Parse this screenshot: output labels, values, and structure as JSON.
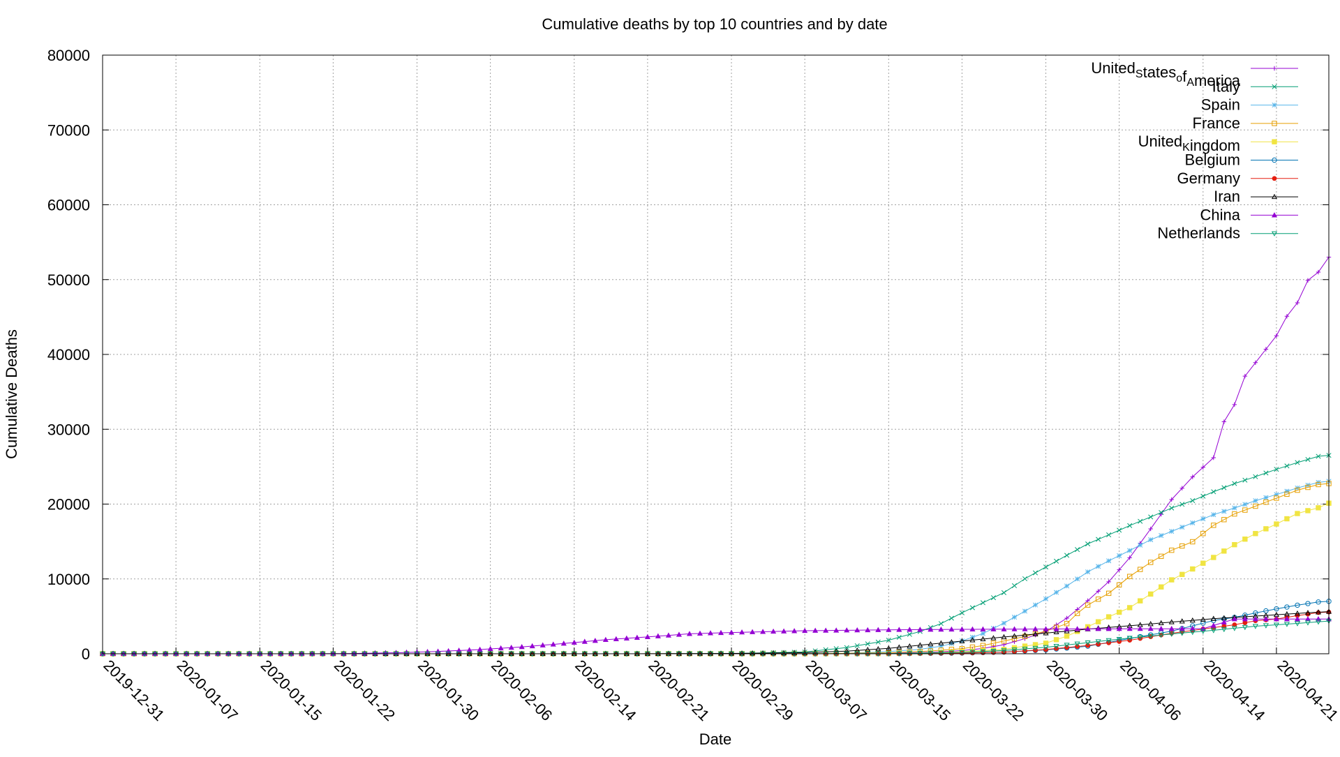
{
  "chart_data": {
    "type": "line",
    "title": "Cumulative deaths by top 10 countries and by date",
    "xlabel": "Date",
    "ylabel": "Cumulative Deaths",
    "x_start": "2019-12-31",
    "x_end": "2020-04-26",
    "x_ticks": [
      "2019-12-31",
      "2020-01-07",
      "2020-01-15",
      "2020-01-22",
      "2020-01-30",
      "2020-02-06",
      "2020-02-14",
      "2020-02-21",
      "2020-02-29",
      "2020-03-07",
      "2020-03-15",
      "2020-03-22",
      "2020-03-30",
      "2020-04-06",
      "2020-04-14",
      "2020-04-21"
    ],
    "ylim": [
      0,
      80000
    ],
    "y_ticks": [
      "0",
      "10000",
      "20000",
      "30000",
      "40000",
      "50000",
      "60000",
      "70000",
      "80000"
    ],
    "grid": true,
    "legend_position": "top-right",
    "series": [
      {
        "name": "United_States_of_America",
        "legend_parts": [
          [
            "United",
            ""
          ],
          [
            "S",
            "sub"
          ],
          [
            "tates",
            ""
          ],
          [
            "o",
            "sub"
          ],
          [
            "f",
            ""
          ],
          [
            "A",
            "sub"
          ],
          [
            "merica",
            ""
          ]
        ],
        "color": "#9400d3",
        "marker": "plus",
        "points": [
          [
            "2019-12-31",
            0
          ],
          [
            "2020-02-29",
            1
          ],
          [
            "2020-03-07",
            17
          ],
          [
            "2020-03-15",
            68
          ],
          [
            "2020-03-19",
            205
          ],
          [
            "2020-03-22",
            417
          ],
          [
            "2020-03-24",
            706
          ],
          [
            "2020-03-26",
            1209
          ],
          [
            "2020-03-28",
            2026
          ],
          [
            "2020-03-30",
            2978
          ],
          [
            "2020-04-01",
            4757
          ],
          [
            "2020-04-03",
            7087
          ],
          [
            "2020-04-05",
            9620
          ],
          [
            "2020-04-07",
            12837
          ],
          [
            "2020-04-09",
            16686
          ],
          [
            "2020-04-11",
            20608
          ],
          [
            "2020-04-13",
            23637
          ],
          [
            "2020-04-15",
            26200
          ],
          [
            "2020-04-16",
            31000
          ],
          [
            "2020-04-17",
            33300
          ],
          [
            "2020-04-18",
            37100
          ],
          [
            "2020-04-19",
            38900
          ],
          [
            "2020-04-20",
            40700
          ],
          [
            "2020-04-21",
            42500
          ],
          [
            "2020-04-22",
            45100
          ],
          [
            "2020-04-23",
            46900
          ],
          [
            "2020-04-24",
            49900
          ],
          [
            "2020-04-25",
            51000
          ],
          [
            "2020-04-26",
            53000
          ],
          [
            "2020-04-27",
            54900
          ]
        ]
      },
      {
        "name": "Italy",
        "color": "#009e73",
        "marker": "x",
        "points": [
          [
            "2019-12-31",
            0
          ],
          [
            "2020-02-21",
            1
          ],
          [
            "2020-02-29",
            29
          ],
          [
            "2020-03-07",
            233
          ],
          [
            "2020-03-11",
            827
          ],
          [
            "2020-03-15",
            1809
          ],
          [
            "2020-03-18",
            2978
          ],
          [
            "2020-03-20",
            4032
          ],
          [
            "2020-03-22",
            5476
          ],
          [
            "2020-03-24",
            6820
          ],
          [
            "2020-03-26",
            8165
          ],
          [
            "2020-03-28",
            10023
          ],
          [
            "2020-03-30",
            11591
          ],
          [
            "2020-04-01",
            13155
          ],
          [
            "2020-04-03",
            14681
          ],
          [
            "2020-04-05",
            15887
          ],
          [
            "2020-04-07",
            17127
          ],
          [
            "2020-04-09",
            18279
          ],
          [
            "2020-04-11",
            19468
          ],
          [
            "2020-04-13",
            20465
          ],
          [
            "2020-04-15",
            21645
          ],
          [
            "2020-04-17",
            22745
          ],
          [
            "2020-04-19",
            23660
          ],
          [
            "2020-04-21",
            24648
          ],
          [
            "2020-04-23",
            25549
          ],
          [
            "2020-04-25",
            26384
          ],
          [
            "2020-04-27",
            26644
          ]
        ]
      },
      {
        "name": "Spain",
        "color": "#56b4e9",
        "marker": "star",
        "points": [
          [
            "2019-12-31",
            0
          ],
          [
            "2020-03-03",
            1
          ],
          [
            "2020-03-07",
            10
          ],
          [
            "2020-03-11",
            48
          ],
          [
            "2020-03-15",
            288
          ],
          [
            "2020-03-18",
            598
          ],
          [
            "2020-03-20",
            1002
          ],
          [
            "2020-03-22",
            1720
          ],
          [
            "2020-03-24",
            2696
          ],
          [
            "2020-03-26",
            4089
          ],
          [
            "2020-03-28",
            5690
          ],
          [
            "2020-03-30",
            7340
          ],
          [
            "2020-04-01",
            9053
          ],
          [
            "2020-04-03",
            10935
          ],
          [
            "2020-04-05",
            12418
          ],
          [
            "2020-04-07",
            13798
          ],
          [
            "2020-04-09",
            15238
          ],
          [
            "2020-04-11",
            16353
          ],
          [
            "2020-04-13",
            17489
          ],
          [
            "2020-04-15",
            18579
          ],
          [
            "2020-04-17",
            19478
          ],
          [
            "2020-04-19",
            20453
          ],
          [
            "2020-04-21",
            21282
          ],
          [
            "2020-04-23",
            22157
          ],
          [
            "2020-04-25",
            22902
          ],
          [
            "2020-04-27",
            23190
          ]
        ]
      },
      {
        "name": "France",
        "color": "#e69f00",
        "marker": "square",
        "points": [
          [
            "2019-12-31",
            0
          ],
          [
            "2020-02-15",
            1
          ],
          [
            "2020-03-07",
            16
          ],
          [
            "2020-03-15",
            127
          ],
          [
            "2020-03-19",
            372
          ],
          [
            "2020-03-22",
            674
          ],
          [
            "2020-03-24",
            1100
          ],
          [
            "2020-03-26",
            1696
          ],
          [
            "2020-03-28",
            2314
          ],
          [
            "2020-03-30",
            3024
          ],
          [
            "2020-04-01",
            4032
          ],
          [
            "2020-04-02",
            5387
          ],
          [
            "2020-04-03",
            6507
          ],
          [
            "2020-04-05",
            8078
          ],
          [
            "2020-04-07",
            10328
          ],
          [
            "2020-04-09",
            12210
          ],
          [
            "2020-04-11",
            13832
          ],
          [
            "2020-04-13",
            14967
          ],
          [
            "2020-04-15",
            17167
          ],
          [
            "2020-04-17",
            18681
          ],
          [
            "2020-04-19",
            19718
          ],
          [
            "2020-04-21",
            20796
          ],
          [
            "2020-04-23",
            21856
          ],
          [
            "2020-04-25",
            22614
          ],
          [
            "2020-04-27",
            22890
          ]
        ]
      },
      {
        "name": "United_Kingdom",
        "legend_parts": [
          [
            "United",
            ""
          ],
          [
            "K",
            "sub"
          ],
          [
            "ingdom",
            ""
          ]
        ],
        "color": "#f0e442",
        "marker": "fsquare",
        "points": [
          [
            "2019-12-31",
            0
          ],
          [
            "2020-03-06",
            1
          ],
          [
            "2020-03-15",
            21
          ],
          [
            "2020-03-19",
            137
          ],
          [
            "2020-03-22",
            281
          ],
          [
            "2020-03-24",
            422
          ],
          [
            "2020-03-26",
            578
          ],
          [
            "2020-03-28",
            1019
          ],
          [
            "2020-03-30",
            1408
          ],
          [
            "2020-04-01",
            2352
          ],
          [
            "2020-04-03",
            3605
          ],
          [
            "2020-04-05",
            4934
          ],
          [
            "2020-04-07",
            6159
          ],
          [
            "2020-04-09",
            7978
          ],
          [
            "2020-04-11",
            9875
          ],
          [
            "2020-04-13",
            11329
          ],
          [
            "2020-04-15",
            12868
          ],
          [
            "2020-04-17",
            14576
          ],
          [
            "2020-04-19",
            16060
          ],
          [
            "2020-04-21",
            17337
          ],
          [
            "2020-04-23",
            18738
          ],
          [
            "2020-04-25",
            19506
          ],
          [
            "2020-04-27",
            20732
          ]
        ]
      },
      {
        "name": "Belgium",
        "color": "#0072b2",
        "marker": "circle",
        "points": [
          [
            "2019-12-31",
            0
          ],
          [
            "2020-03-11",
            3
          ],
          [
            "2020-03-15",
            10
          ],
          [
            "2020-03-22",
            88
          ],
          [
            "2020-03-26",
            220
          ],
          [
            "2020-03-30",
            513
          ],
          [
            "2020-04-03",
            1011
          ],
          [
            "2020-04-07",
            2035
          ],
          [
            "2020-04-11",
            3019
          ],
          [
            "2020-04-15",
            4440
          ],
          [
            "2020-04-17",
            4857
          ],
          [
            "2020-04-19",
            5453
          ],
          [
            "2020-04-21",
            5998
          ],
          [
            "2020-04-23",
            6490
          ],
          [
            "2020-04-25",
            6917
          ],
          [
            "2020-04-27",
            7094
          ]
        ]
      },
      {
        "name": "Germany",
        "color": "#e51e10",
        "marker": "dot",
        "points": [
          [
            "2019-12-31",
            0
          ],
          [
            "2020-03-09",
            2
          ],
          [
            "2020-03-15",
            12
          ],
          [
            "2020-03-22",
            94
          ],
          [
            "2020-03-26",
            206
          ],
          [
            "2020-03-30",
            560
          ],
          [
            "2020-04-03",
            1107
          ],
          [
            "2020-04-07",
            1810
          ],
          [
            "2020-04-11",
            2736
          ],
          [
            "2020-04-15",
            3495
          ],
          [
            "2020-04-17",
            3868
          ],
          [
            "2020-04-19",
            4404
          ],
          [
            "2020-04-21",
            4642
          ],
          [
            "2020-04-23",
            5094
          ],
          [
            "2020-04-25",
            5500
          ],
          [
            "2020-04-27",
            5640
          ]
        ]
      },
      {
        "name": "Iran",
        "color": "#000000",
        "marker": "triangle",
        "points": [
          [
            "2019-12-31",
            0
          ],
          [
            "2020-02-20",
            2
          ],
          [
            "2020-02-29",
            43
          ],
          [
            "2020-03-07",
            145
          ],
          [
            "2020-03-11",
            354
          ],
          [
            "2020-03-15",
            724
          ],
          [
            "2020-03-19",
            1284
          ],
          [
            "2020-03-22",
            1685
          ],
          [
            "2020-03-26",
            2234
          ],
          [
            "2020-03-30",
            2757
          ],
          [
            "2020-04-03",
            3294
          ],
          [
            "2020-04-07",
            3739
          ],
          [
            "2020-04-11",
            4232
          ],
          [
            "2020-04-15",
            4683
          ],
          [
            "2020-04-19",
            5031
          ],
          [
            "2020-04-23",
            5391
          ],
          [
            "2020-04-27",
            5710
          ]
        ]
      },
      {
        "name": "China",
        "color": "#9400d3",
        "marker": "ftriangle",
        "points": [
          [
            "2019-12-31",
            0
          ],
          [
            "2020-01-11",
            1
          ],
          [
            "2020-01-20",
            3
          ],
          [
            "2020-01-24",
            41
          ],
          [
            "2020-01-28",
            132
          ],
          [
            "2020-02-01",
            304
          ],
          [
            "2020-02-05",
            563
          ],
          [
            "2020-02-09",
            910
          ],
          [
            "2020-02-13",
            1367
          ],
          [
            "2020-02-17",
            1870
          ],
          [
            "2020-02-21",
            2248
          ],
          [
            "2020-02-25",
            2664
          ],
          [
            "2020-02-29",
            2837
          ],
          [
            "2020-03-07",
            3073
          ],
          [
            "2020-03-15",
            3199
          ],
          [
            "2020-03-22",
            3261
          ],
          [
            "2020-03-30",
            3304
          ],
          [
            "2020-04-06",
            3335
          ],
          [
            "2020-04-14",
            3345
          ],
          [
            "2020-04-17",
            4632
          ],
          [
            "2020-04-21",
            4636
          ],
          [
            "2020-04-27",
            4637
          ]
        ]
      },
      {
        "name": "Netherlands",
        "color": "#009e73",
        "marker": "itriangle",
        "points": [
          [
            "2019-12-31",
            0
          ],
          [
            "2020-03-06",
            1
          ],
          [
            "2020-03-15",
            20
          ],
          [
            "2020-03-22",
            179
          ],
          [
            "2020-03-26",
            434
          ],
          [
            "2020-03-30",
            864
          ],
          [
            "2020-04-03",
            1487
          ],
          [
            "2020-04-07",
            2101
          ],
          [
            "2020-04-11",
            2643
          ],
          [
            "2020-04-15",
            3134
          ],
          [
            "2020-04-19",
            3684
          ],
          [
            "2020-04-23",
            4054
          ],
          [
            "2020-04-27",
            4475
          ]
        ]
      }
    ]
  }
}
